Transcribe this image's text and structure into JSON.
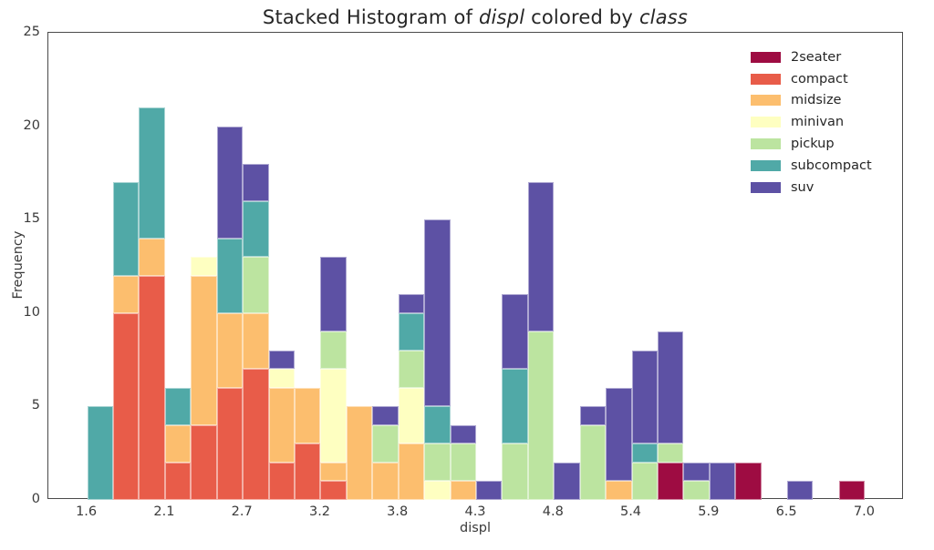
{
  "title": {
    "full_text": "Stacked Histogram of displ colored by class",
    "segments": [
      {
        "text": "Stacked Histogram of ",
        "italic": false
      },
      {
        "text": "displ",
        "italic": true
      },
      {
        "text": " colored by ",
        "italic": false
      },
      {
        "text": "class",
        "italic": true
      }
    ]
  },
  "axes": {
    "x_label": "displ",
    "y_label": "Frequency",
    "x_ticks": [
      {
        "value": 1.6,
        "label": "1.6"
      },
      {
        "value": 2.14,
        "label": "2.1"
      },
      {
        "value": 2.68,
        "label": "2.7"
      },
      {
        "value": 3.22,
        "label": "3.2"
      },
      {
        "value": 3.76,
        "label": "3.8"
      },
      {
        "value": 4.3,
        "label": "4.3"
      },
      {
        "value": 4.84,
        "label": "4.8"
      },
      {
        "value": 5.38,
        "label": "5.4"
      },
      {
        "value": 5.92,
        "label": "5.9"
      },
      {
        "value": 6.46,
        "label": "6.5"
      },
      {
        "value": 7.0,
        "label": "7.0"
      }
    ],
    "y_ticks": [
      {
        "value": 0,
        "label": "0"
      },
      {
        "value": 5,
        "label": "5"
      },
      {
        "value": 10,
        "label": "10"
      },
      {
        "value": 15,
        "label": "15"
      },
      {
        "value": 20,
        "label": "20"
      },
      {
        "value": 25,
        "label": "25"
      }
    ]
  },
  "legend": {
    "entries": [
      {
        "label": "2seater",
        "color": "#9e0c42"
      },
      {
        "label": "compact",
        "color": "#e85c49"
      },
      {
        "label": "midsize",
        "color": "#fcbe6e"
      },
      {
        "label": "minivan",
        "color": "#feffc1"
      },
      {
        "label": "pickup",
        "color": "#bce4a0"
      },
      {
        "label": "subcompact",
        "color": "#50a9a7"
      },
      {
        "label": "suv",
        "color": "#5d51a4"
      }
    ]
  },
  "chart_data": {
    "type": "bar",
    "subtype": "stacked-histogram",
    "title": "Stacked Histogram of displ colored by class",
    "xlabel": "displ",
    "ylabel": "Frequency",
    "xlim": [
      1.33,
      7.27
    ],
    "ylim": [
      0,
      25
    ],
    "grid": false,
    "legend_position": "upper-right-inside",
    "bin_start": 1.6,
    "bin_width": 0.18,
    "n_bins": 30,
    "series": [
      {
        "name": "2seater",
        "color": "#9e0c42",
        "values": [
          0,
          0,
          0,
          0,
          0,
          0,
          0,
          0,
          0,
          0,
          0,
          0,
          0,
          0,
          0,
          0,
          0,
          0,
          0,
          0,
          0,
          0,
          2,
          0,
          0,
          2,
          0,
          0,
          0,
          1
        ]
      },
      {
        "name": "compact",
        "color": "#e85c49",
        "values": [
          0,
          10,
          12,
          2,
          4,
          6,
          7,
          2,
          3,
          1,
          0,
          0,
          0,
          0,
          0,
          0,
          0,
          0,
          0,
          0,
          0,
          0,
          0,
          0,
          0,
          0,
          0,
          0,
          0,
          0
        ]
      },
      {
        "name": "midsize",
        "color": "#fcbe6e",
        "values": [
          0,
          2,
          2,
          2,
          8,
          4,
          3,
          4,
          3,
          1,
          5,
          2,
          3,
          0,
          1,
          0,
          0,
          0,
          0,
          0,
          1,
          0,
          0,
          0,
          0,
          0,
          0,
          0,
          0,
          0
        ]
      },
      {
        "name": "minivan",
        "color": "#feffc1",
        "values": [
          0,
          0,
          0,
          0,
          1,
          0,
          0,
          1,
          0,
          5,
          0,
          0,
          3,
          1,
          0,
          0,
          0,
          0,
          0,
          0,
          0,
          0,
          0,
          0,
          0,
          0,
          0,
          0,
          0,
          0
        ]
      },
      {
        "name": "pickup",
        "color": "#bce4a0",
        "values": [
          0,
          0,
          0,
          0,
          0,
          0,
          3,
          0,
          0,
          2,
          0,
          2,
          2,
          2,
          2,
          0,
          3,
          9,
          0,
          4,
          0,
          2,
          1,
          1,
          0,
          0,
          0,
          0,
          0,
          0
        ]
      },
      {
        "name": "subcompact",
        "color": "#50a9a7",
        "values": [
          5,
          5,
          7,
          2,
          0,
          4,
          3,
          0,
          0,
          0,
          0,
          0,
          2,
          2,
          0,
          0,
          4,
          0,
          0,
          0,
          0,
          1,
          0,
          0,
          0,
          0,
          0,
          0,
          0,
          0
        ]
      },
      {
        "name": "suv",
        "color": "#5d51a4",
        "values": [
          0,
          0,
          0,
          0,
          0,
          6,
          2,
          1,
          0,
          4,
          0,
          1,
          1,
          10,
          1,
          1,
          4,
          8,
          2,
          1,
          5,
          5,
          6,
          1,
          2,
          0,
          0,
          1,
          0,
          0
        ]
      }
    ],
    "bar_totals": [
      5,
      17,
      21,
      6,
      13,
      20,
      18,
      8,
      6,
      13,
      5,
      5,
      11,
      15,
      4,
      1,
      11,
      17,
      2,
      5,
      6,
      8,
      9,
      2,
      2,
      2,
      0,
      1,
      0,
      1
    ]
  },
  "style": {
    "spine_color": "#4a4a4a",
    "text_color": "#262626",
    "tick_text_color": "#3a3a3a",
    "background": "#ffffff"
  }
}
